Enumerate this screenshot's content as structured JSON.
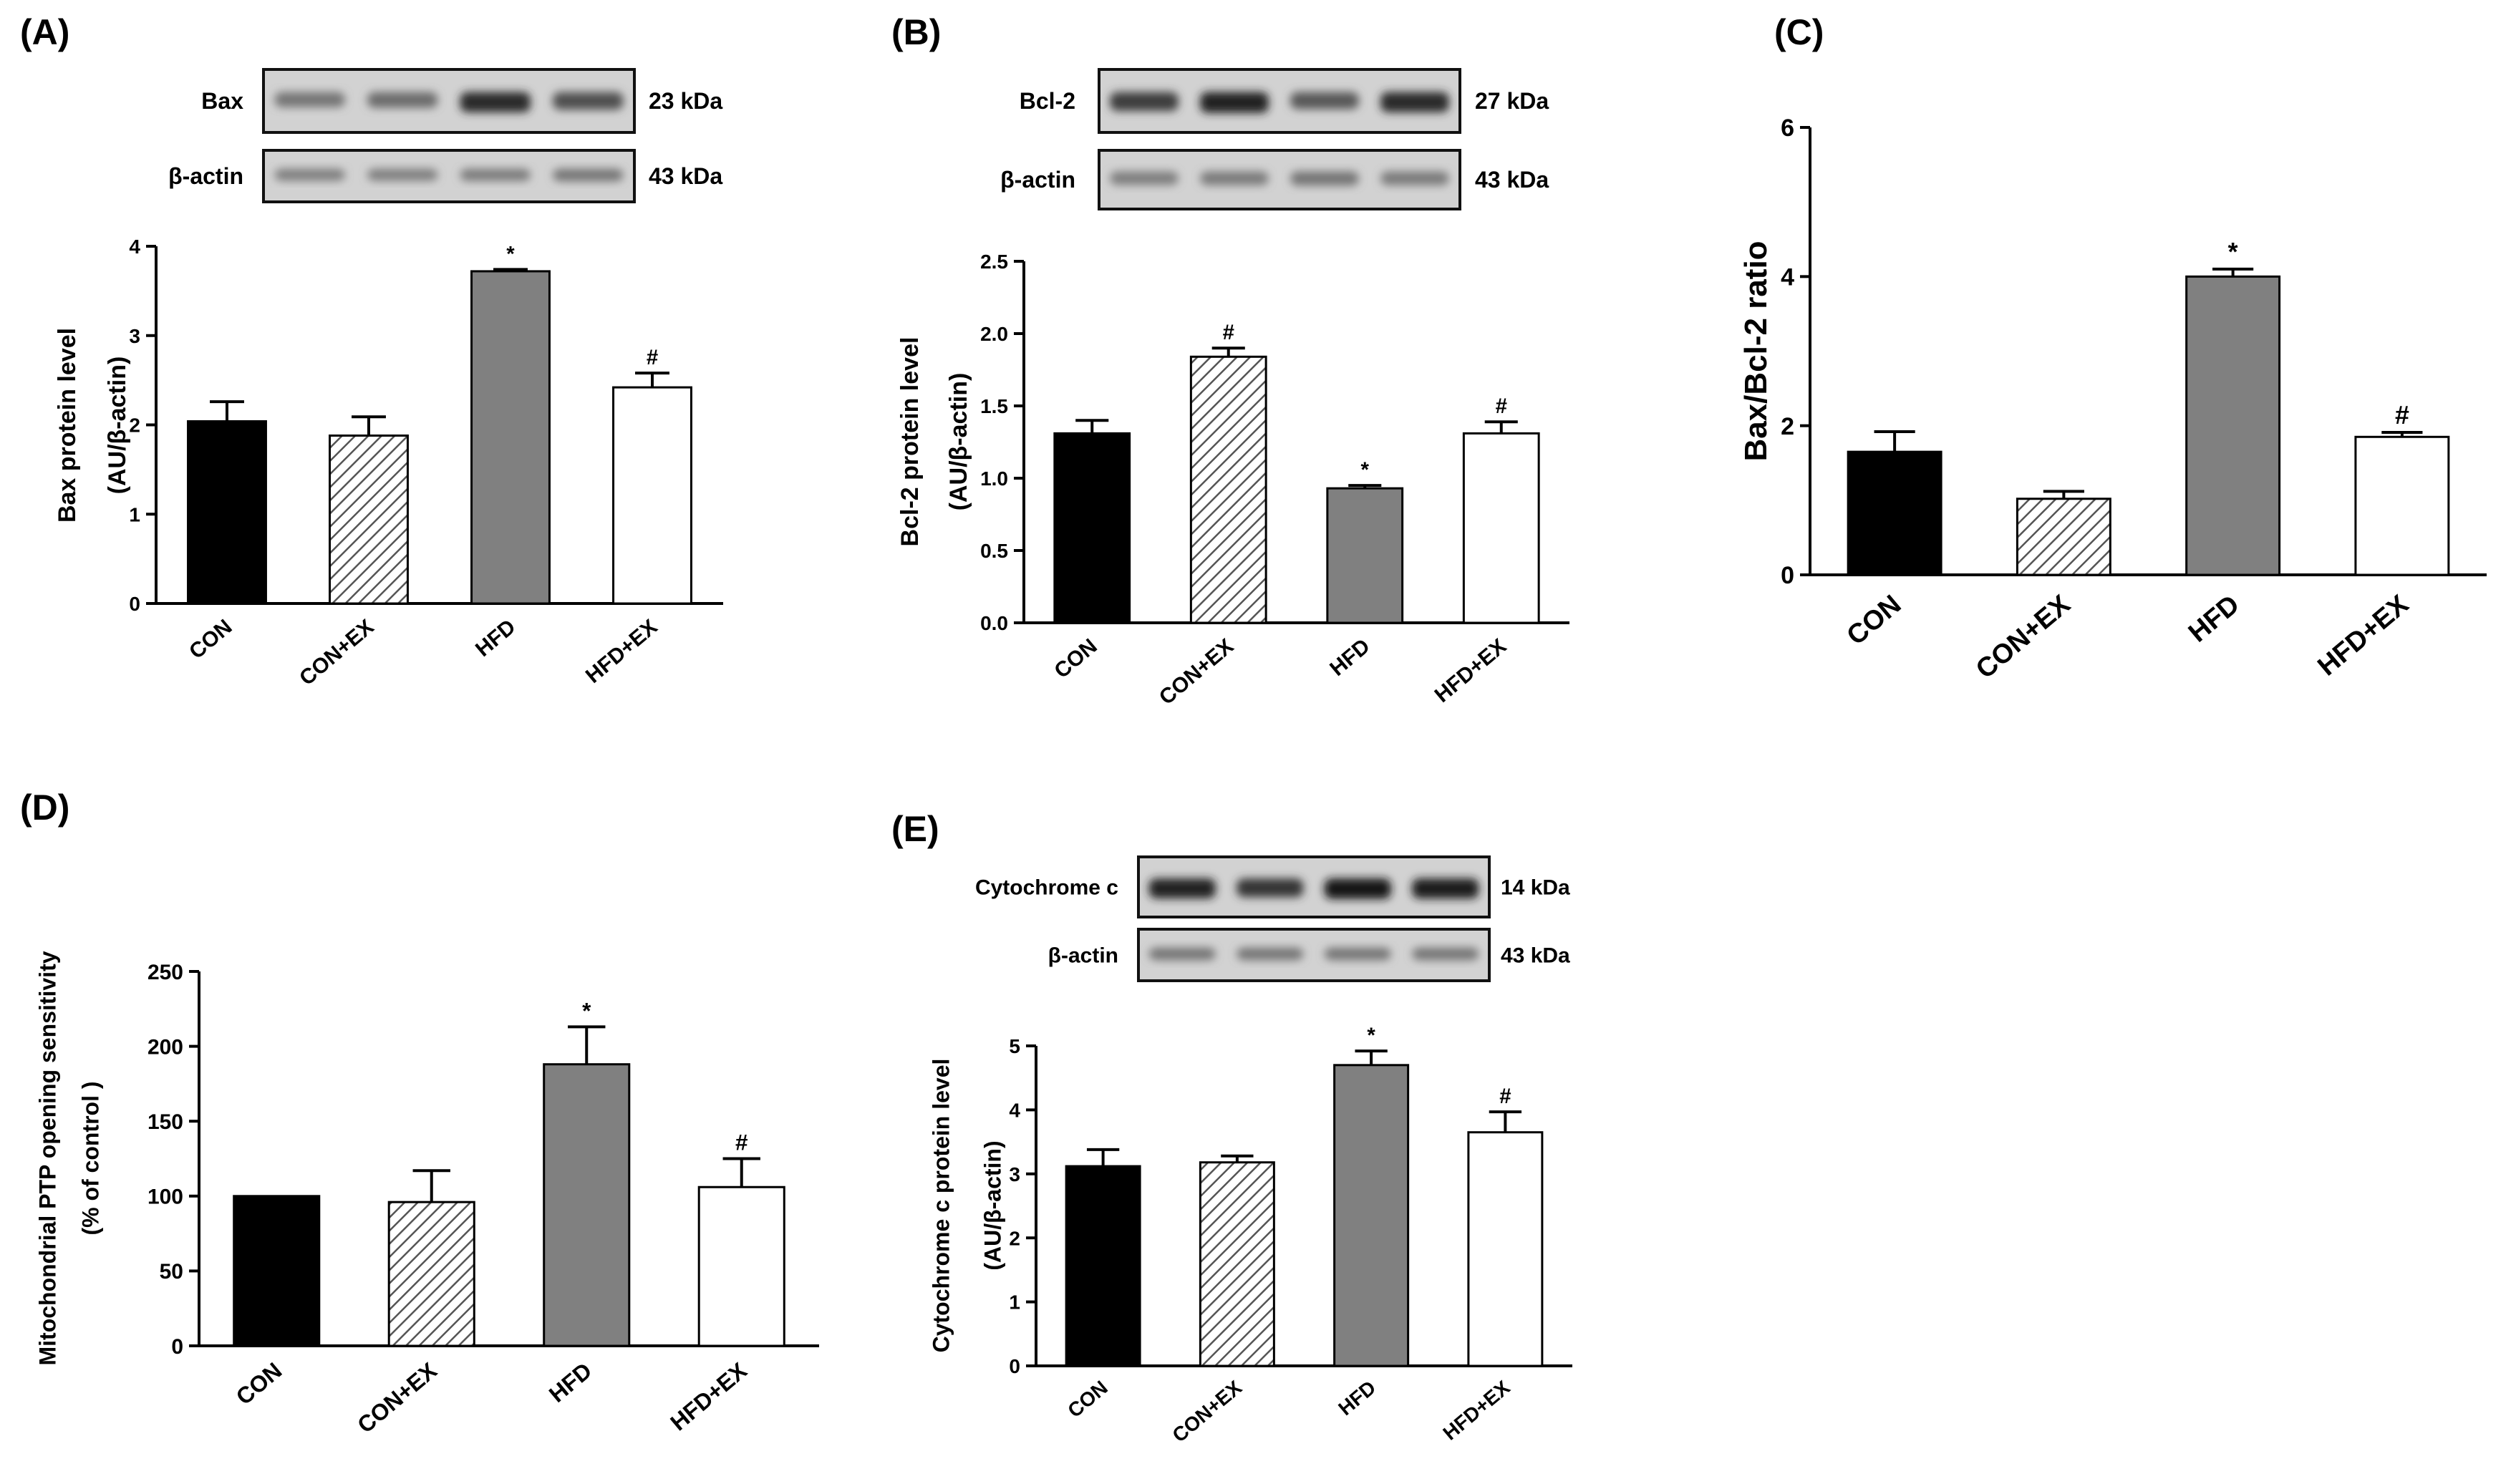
{
  "figure": {
    "background": "#ffffff"
  },
  "chart_data": [
    {
      "id": "A",
      "panel_label": "(A)",
      "type": "bar",
      "ylabel_lines": [
        "Bax  protein level",
        "(AU/β-actin)"
      ],
      "ylim": [
        0,
        4
      ],
      "yticks": [
        0,
        1,
        2,
        3,
        4
      ],
      "tick_labels": [
        "0",
        "1",
        "2",
        "3",
        "4"
      ],
      "categories": [
        "CON",
        "CON+EX",
        "HFD",
        "HFD+EX"
      ],
      "values": [
        2.04,
        1.88,
        3.72,
        2.42
      ],
      "errors": [
        0.22,
        0.21,
        0.02,
        0.16
      ],
      "annotations": [
        "",
        "",
        "*",
        "#"
      ],
      "blot": {
        "bands": [
          {
            "label": "Bax",
            "kda": "23 kDa",
            "intensities": [
              0.45,
              0.5,
              0.85,
              0.65
            ]
          },
          {
            "label": "β-actin",
            "kda": "43 kDa",
            "intensities": [
              0.4,
              0.4,
              0.42,
              0.45
            ]
          }
        ]
      }
    },
    {
      "id": "B",
      "panel_label": "(B)",
      "type": "bar",
      "ylabel_lines": [
        "Bcl-2  protein level",
        "(AU/β-actin)"
      ],
      "ylim": [
        0,
        2.5
      ],
      "yticks": [
        0,
        0.5,
        1.0,
        1.5,
        2.0,
        2.5
      ],
      "tick_labels": [
        "0.0",
        "0.5",
        "1.0",
        "1.5",
        "2.0",
        "2.5"
      ],
      "categories": [
        "CON",
        "CON+EX",
        "HFD",
        "HFD+EX"
      ],
      "values": [
        1.31,
        1.84,
        0.93,
        1.31
      ],
      "errors": [
        0.09,
        0.06,
        0.02,
        0.08
      ],
      "annotations": [
        "",
        "#",
        "*",
        "#"
      ],
      "blot": {
        "bands": [
          {
            "label": "Bcl-2",
            "kda": "27 kDa",
            "intensities": [
              0.75,
              0.9,
              0.6,
              0.85
            ]
          },
          {
            "label": "β-actin",
            "kda": "43 kDa",
            "intensities": [
              0.4,
              0.42,
              0.45,
              0.42
            ]
          }
        ]
      }
    },
    {
      "id": "C",
      "panel_label": "(C)",
      "type": "bar",
      "ylabel_lines": [
        "Bax/Bcl-2 ratio"
      ],
      "ylim": [
        0,
        6
      ],
      "yticks": [
        0,
        2,
        4,
        6
      ],
      "tick_labels": [
        "0",
        "2",
        "4",
        "6"
      ],
      "categories": [
        "CON",
        "CON+EX",
        "HFD",
        "HFD+EX"
      ],
      "values": [
        1.65,
        1.02,
        4.0,
        1.85
      ],
      "errors": [
        0.27,
        0.1,
        0.1,
        0.06
      ],
      "annotations": [
        "",
        "",
        "*",
        "#"
      ]
    },
    {
      "id": "D",
      "panel_label": "(D)",
      "type": "bar",
      "ylabel_lines": [
        "Mitochondrial PTP opening sensitivity",
        "(% of control )"
      ],
      "ylim": [
        0,
        250
      ],
      "yticks": [
        0,
        50,
        100,
        150,
        200,
        250
      ],
      "tick_labels": [
        "0",
        "50",
        "100",
        "150",
        "200",
        "250"
      ],
      "categories": [
        "CON",
        "CON+EX",
        "HFD",
        "HFD+EX"
      ],
      "values": [
        100,
        96,
        188,
        106
      ],
      "errors": [
        0,
        21,
        25,
        19
      ],
      "annotations": [
        "",
        "",
        "*",
        "#"
      ]
    },
    {
      "id": "E",
      "panel_label": "(E)",
      "type": "bar",
      "ylabel_lines": [
        "Cytochrome c  protein level",
        "(AU/β-actin)"
      ],
      "ylim": [
        0,
        5
      ],
      "yticks": [
        0,
        1,
        2,
        3,
        4,
        5
      ],
      "tick_labels": [
        "0",
        "1",
        "2",
        "3",
        "4",
        "5"
      ],
      "categories": [
        "CON",
        "CON+EX",
        "HFD",
        "HFD+EX"
      ],
      "values": [
        3.12,
        3.18,
        4.7,
        3.65
      ],
      "errors": [
        0.26,
        0.1,
        0.22,
        0.32
      ],
      "annotations": [
        "",
        "",
        "*",
        "#"
      ],
      "blot": {
        "bands": [
          {
            "label": "Cytochrome c",
            "kda": "14 kDa",
            "intensities": [
              0.9,
              0.8,
              0.95,
              0.92
            ]
          },
          {
            "label": "β-actin",
            "kda": "43 kDa",
            "intensities": [
              0.45,
              0.45,
              0.45,
              0.45
            ]
          }
        ]
      }
    }
  ]
}
